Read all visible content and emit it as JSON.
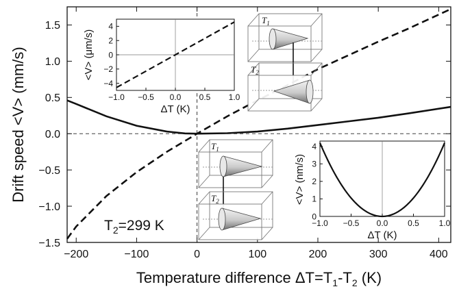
{
  "chart_data": [
    {
      "type": "line",
      "xlabel": "Temperature difference ΔT=T",
      "xlabel_sub1": "1",
      "xlabel_mid": "-T",
      "xlabel_sub2": "2",
      "xlabel_tail": " (K)",
      "ylabel": "Drift speed <V> (mm/s)",
      "annotation": {
        "text": "T",
        "sub": "2",
        "tail": "=299 K"
      },
      "xlim": [
        -215,
        420
      ],
      "ylim": [
        -1.5,
        1.75
      ],
      "x_ticks": [
        -200,
        -100,
        0,
        100,
        200,
        300,
        400
      ],
      "x_tick_labels": [
        "−200",
        "−100",
        "0",
        "100",
        "200",
        "300",
        "400"
      ],
      "y_ticks": [
        -1.5,
        -1.0,
        -0.5,
        0.0,
        0.5,
        1.0,
        1.5
      ],
      "y_tick_labels": [
        "−1.5",
        "−1.0",
        "−0.5",
        "0.0",
        "0.5",
        "1.0",
        "1.5"
      ],
      "series": [
        {
          "style": "solid",
          "x": [
            -215,
            -200,
            -150,
            -100,
            -50,
            -20,
            0,
            50,
            100,
            150,
            200,
            250,
            300,
            350,
            420
          ],
          "y": [
            0.46,
            0.41,
            0.24,
            0.11,
            0.03,
            0.004,
            0.0,
            0.007,
            0.03,
            0.07,
            0.12,
            0.17,
            0.22,
            0.28,
            0.37
          ]
        },
        {
          "style": "dashed",
          "x": [
            -215,
            -200,
            -150,
            -100,
            -50,
            0,
            50,
            100,
            150,
            200,
            250,
            300,
            350,
            420
          ],
          "y": [
            -1.45,
            -1.28,
            -0.86,
            -0.53,
            -0.25,
            0.0,
            0.24,
            0.46,
            0.67,
            0.89,
            1.08,
            1.27,
            1.45,
            1.72
          ]
        }
      ],
      "reference_lines": {
        "horizontal_y": 0.0,
        "vertical_x": 0.0,
        "style": "dashed"
      }
    },
    {
      "type": "line",
      "xlabel": "ΔT (K)",
      "ylabel": "<V> (μm/s)",
      "xlim": [
        -1.0,
        1.0
      ],
      "ylim": [
        -5.0,
        5.0
      ],
      "x_ticks": [
        -1.0,
        -0.5,
        0.0,
        0.5,
        1.0
      ],
      "x_tick_labels": [
        "−1.0",
        "−0.5",
        "0.0",
        "0.5",
        "1.0"
      ],
      "y_ticks": [
        -4,
        -2,
        0,
        2,
        4
      ],
      "y_tick_labels": [
        "−4",
        "−2",
        "0",
        "2",
        "4"
      ],
      "series": [
        {
          "style": "dashed",
          "x": [
            -1.0,
            1.0
          ],
          "y": [
            -4.6,
            4.6
          ]
        }
      ]
    },
    {
      "type": "line",
      "xlabel": "ΔT (K)",
      "ylabel": "<V> (nm/s)",
      "xlim": [
        -1.0,
        1.0
      ],
      "ylim": [
        0.0,
        4.3
      ],
      "x_ticks": [
        -1.0,
        -0.5,
        0.0,
        0.5,
        1.0
      ],
      "x_tick_labels": [
        "−1.0",
        "−0.5",
        "0.0",
        "0.5",
        "1.0"
      ],
      "y_ticks": [
        0,
        1,
        2,
        3,
        4
      ],
      "y_tick_labels": [
        "0",
        "1",
        "2",
        "3",
        "4"
      ],
      "series": [
        {
          "style": "solid",
          "x": [
            -1.0,
            -0.75,
            -0.5,
            -0.25,
            0.0,
            0.25,
            0.5,
            0.75,
            1.0
          ],
          "y": [
            4.2,
            2.36,
            1.05,
            0.26,
            0.0,
            0.26,
            1.05,
            2.36,
            4.2
          ]
        }
      ]
    }
  ],
  "schematics": [
    {
      "top_label": "T",
      "top_sub": "1",
      "bottom_label": "T",
      "bottom_sub": "2",
      "top_cone": "pointing-right",
      "bottom_cone": "pointing-left"
    },
    {
      "top_label": "T",
      "top_sub": "1",
      "bottom_label": "T",
      "bottom_sub": "2",
      "top_cone": "pointing-right",
      "bottom_cone": "pointing-right"
    }
  ]
}
